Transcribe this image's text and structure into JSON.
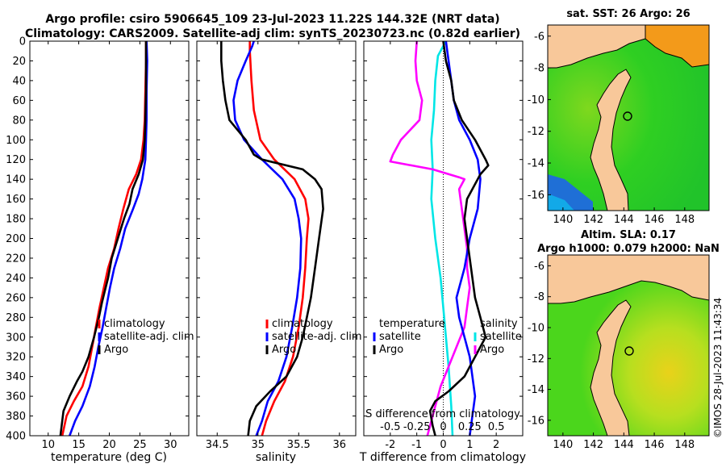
{
  "header": {
    "title_line1": "Argo profile: csiro 5906645_109 23-Jul-2023 11.22S 144.32E (NRT data)",
    "title_line2": "Climatology: CARS2009. Satellite-adj clim: synTS_20230723.nc (0.82d earlier)"
  },
  "colors": {
    "climatology": "#ff0000",
    "satellite": "#0000ff",
    "argo": "#000000",
    "salinity": "#00e6e6",
    "salinity_diff": "#ff00ff",
    "land": "#f8c89a",
    "ocean_green": "#33cc22",
    "deep_blue": "#1f6fd6",
    "warm_orange": "#f39a1a",
    "yellow_green": "#c9e21c"
  },
  "watermark": "©IMOS 28-Jul-2023 11:43:34",
  "chart_data": [
    {
      "id": "temperature",
      "type": "line",
      "xlabel": "temperature (deg C)",
      "ylabel": "",
      "xlim": [
        7,
        33
      ],
      "ylim": [
        400,
        0
      ],
      "xticks": [
        "10",
        "15",
        "20",
        "25",
        "30"
      ],
      "xtick_values": [
        10,
        15,
        20,
        25,
        30
      ],
      "yticks": [
        "0",
        "20",
        "40",
        "60",
        "80",
        "100",
        "120",
        "140",
        "160",
        "180",
        "200",
        "220",
        "240",
        "260",
        "280",
        "300",
        "320",
        "340",
        "360",
        "380",
        "400"
      ],
      "legend": [
        "climatology",
        "satellite-adj. clim",
        "Argo"
      ],
      "series": [
        {
          "name": "climatology",
          "color": "#ff0000",
          "points": [
            [
              26,
              0
            ],
            [
              26,
              20
            ],
            [
              25.9,
              50
            ],
            [
              25.8,
              80
            ],
            [
              25.6,
              100
            ],
            [
              25.2,
              120
            ],
            [
              24.4,
              135
            ],
            [
              23.2,
              150
            ],
            [
              22.3,
              170
            ],
            [
              21.5,
              190
            ],
            [
              20.8,
              210
            ],
            [
              19.8,
              230
            ],
            [
              19.1,
              250
            ],
            [
              18.4,
              270
            ],
            [
              17.8,
              290
            ],
            [
              17.2,
              310
            ],
            [
              16.6,
              330
            ],
            [
              15.6,
              350
            ],
            [
              14.2,
              365
            ],
            [
              13,
              380
            ],
            [
              12.3,
              400
            ]
          ]
        },
        {
          "name": "satellite-adj. clim",
          "color": "#0000ff",
          "points": [
            [
              26.1,
              0
            ],
            [
              26.2,
              20
            ],
            [
              26.1,
              50
            ],
            [
              26.1,
              80
            ],
            [
              26,
              100
            ],
            [
              25.9,
              120
            ],
            [
              25.4,
              140
            ],
            [
              24.8,
              155
            ],
            [
              23.9,
              170
            ],
            [
              22.6,
              190
            ],
            [
              21.8,
              210
            ],
            [
              20.8,
              230
            ],
            [
              20.1,
              250
            ],
            [
              19.5,
              270
            ],
            [
              18.9,
              290
            ],
            [
              18.2,
              310
            ],
            [
              17.6,
              330
            ],
            [
              16.8,
              350
            ],
            [
              15.6,
              370
            ],
            [
              14.4,
              385
            ],
            [
              13.5,
              400
            ]
          ]
        },
        {
          "name": "Argo",
          "color": "#000000",
          "points": [
            [
              26,
              0
            ],
            [
              26,
              20
            ],
            [
              26,
              50
            ],
            [
              25.9,
              80
            ],
            [
              25.8,
              100
            ],
            [
              25.5,
              120
            ],
            [
              24.8,
              135
            ],
            [
              23.8,
              150
            ],
            [
              23.3,
              165
            ],
            [
              22.4,
              180
            ],
            [
              21.4,
              200
            ],
            [
              20.4,
              220
            ],
            [
              19.8,
              240
            ],
            [
              19.2,
              255
            ],
            [
              18.8,
              265
            ],
            [
              18.3,
              280
            ],
            [
              17.5,
              300
            ],
            [
              16.6,
              320
            ],
            [
              15.6,
              335
            ],
            [
              14.7,
              345
            ],
            [
              13.5,
              360
            ],
            [
              12.5,
              375
            ],
            [
              12.2,
              390
            ],
            [
              12,
              400
            ]
          ]
        }
      ]
    },
    {
      "id": "salinity",
      "type": "line",
      "xlabel": "salinity",
      "ylabel": "",
      "xlim": [
        34.25,
        36.2
      ],
      "ylim": [
        400,
        0
      ],
      "xticks": [
        "34.5",
        "35",
        "35.5",
        "36"
      ],
      "xtick_values": [
        34.5,
        35,
        35.5,
        36
      ],
      "legend": [
        "climatology",
        "satellite-adj. clim",
        "Argo"
      ],
      "series": [
        {
          "name": "climatology",
          "color": "#ff0000",
          "points": [
            [
              34.9,
              0
            ],
            [
              34.9,
              10
            ],
            [
              34.92,
              40
            ],
            [
              34.95,
              70
            ],
            [
              35.03,
              100
            ],
            [
              35.2,
              120
            ],
            [
              35.45,
              140
            ],
            [
              35.58,
              160
            ],
            [
              35.62,
              180
            ],
            [
              35.6,
              200
            ],
            [
              35.58,
              230
            ],
            [
              35.55,
              260
            ],
            [
              35.5,
              290
            ],
            [
              35.43,
              320
            ],
            [
              35.33,
              345
            ],
            [
              35.2,
              365
            ],
            [
              35.1,
              385
            ],
            [
              35.05,
              400
            ]
          ]
        },
        {
          "name": "satellite-adj. clim",
          "color": "#0000ff",
          "points": [
            [
              34.95,
              0
            ],
            [
              34.93,
              5
            ],
            [
              34.85,
              20
            ],
            [
              34.75,
              40
            ],
            [
              34.7,
              60
            ],
            [
              34.72,
              80
            ],
            [
              34.83,
              100
            ],
            [
              35.05,
              120
            ],
            [
              35.3,
              140
            ],
            [
              35.45,
              160
            ],
            [
              35.5,
              180
            ],
            [
              35.53,
              200
            ],
            [
              35.52,
              230
            ],
            [
              35.48,
              260
            ],
            [
              35.42,
              290
            ],
            [
              35.35,
              320
            ],
            [
              35.25,
              345
            ],
            [
              35.12,
              365
            ],
            [
              35.05,
              385
            ],
            [
              34.98,
              400
            ]
          ]
        },
        {
          "name": "Argo",
          "color": "#000000",
          "points": [
            [
              34.55,
              0
            ],
            [
              34.55,
              20
            ],
            [
              34.57,
              40
            ],
            [
              34.6,
              60
            ],
            [
              34.65,
              80
            ],
            [
              34.85,
              100
            ],
            [
              34.95,
              115
            ],
            [
              35.05,
              120
            ],
            [
              35.55,
              130
            ],
            [
              35.7,
              140
            ],
            [
              35.78,
              150
            ],
            [
              35.8,
              170
            ],
            [
              35.75,
              200
            ],
            [
              35.7,
              230
            ],
            [
              35.65,
              260
            ],
            [
              35.6,
              280
            ],
            [
              35.55,
              300
            ],
            [
              35.48,
              320
            ],
            [
              35.35,
              340
            ],
            [
              35.15,
              355
            ],
            [
              34.98,
              370
            ],
            [
              34.9,
              385
            ],
            [
              34.88,
              400
            ]
          ]
        }
      ]
    },
    {
      "id": "difference",
      "type": "line",
      "xlabel": "T difference from climatology",
      "top_xlabel": "S difference from climatology",
      "xlim": [
        -3,
        3
      ],
      "ylim": [
        400,
        0
      ],
      "xticks": [
        "-2",
        "-1",
        "0",
        "1",
        "2"
      ],
      "xtick_values": [
        -2,
        -1,
        0,
        1,
        2
      ],
      "top_xticks": [
        "-0.5",
        "-0.25",
        "0",
        "0.25",
        "0.5"
      ],
      "top_xtick_values": [
        -2,
        -1,
        0,
        1,
        2
      ],
      "legend_left_title": "temperature",
      "legend_right_title": "salinity",
      "legend_left": [
        "satellite",
        "Argo"
      ],
      "legend_right": [
        "satellite",
        "Argo"
      ],
      "series": [
        {
          "name": "salinity satellite",
          "color": "#00e6e6",
          "points": [
            [
              0.1,
              0
            ],
            [
              -0.2,
              15
            ],
            [
              -0.3,
              40
            ],
            [
              -0.35,
              70
            ],
            [
              -0.45,
              100
            ],
            [
              -0.4,
              130
            ],
            [
              -0.45,
              160
            ],
            [
              -0.3,
              200
            ],
            [
              -0.1,
              240
            ],
            [
              0,
              270
            ],
            [
              0.1,
              300
            ],
            [
              0.2,
              330
            ],
            [
              0.3,
              370
            ],
            [
              0.35,
              400
            ]
          ]
        },
        {
          "name": "salinity Argo",
          "color": "#ff00ff",
          "points": [
            [
              -1,
              0
            ],
            [
              -1.05,
              20
            ],
            [
              -1,
              40
            ],
            [
              -0.8,
              60
            ],
            [
              -0.9,
              80
            ],
            [
              -1.6,
              100
            ],
            [
              -1.9,
              115
            ],
            [
              -2,
              122
            ],
            [
              -0.4,
              130
            ],
            [
              0.6,
              138
            ],
            [
              0.8,
              140
            ],
            [
              0.6,
              150
            ],
            [
              0.7,
              170
            ],
            [
              0.8,
              190
            ],
            [
              0.9,
              210
            ],
            [
              0.9,
              230
            ],
            [
              1,
              250
            ],
            [
              0.9,
              270
            ],
            [
              0.8,
              290
            ],
            [
              0.5,
              310
            ],
            [
              0.2,
              330
            ],
            [
              -0.1,
              350
            ],
            [
              -0.3,
              370
            ],
            [
              -0.5,
              390
            ],
            [
              -0.6,
              400
            ]
          ]
        },
        {
          "name": "temperature satellite",
          "color": "#0000ff",
          "points": [
            [
              0.1,
              0
            ],
            [
              0.2,
              20
            ],
            [
              0.3,
              40
            ],
            [
              0.4,
              60
            ],
            [
              0.6,
              80
            ],
            [
              1,
              100
            ],
            [
              1.3,
              120
            ],
            [
              1.4,
              140
            ],
            [
              1.3,
              170
            ],
            [
              1,
              200
            ],
            [
              0.8,
              230
            ],
            [
              0.5,
              260
            ],
            [
              0.6,
              280
            ],
            [
              0.8,
              300
            ],
            [
              1,
              320
            ],
            [
              1.1,
              340
            ],
            [
              1.2,
              360
            ],
            [
              1.1,
              380
            ],
            [
              1,
              400
            ]
          ]
        },
        {
          "name": "temperature Argo",
          "color": "#000000",
          "points": [
            [
              0,
              0
            ],
            [
              0.1,
              20
            ],
            [
              0.3,
              40
            ],
            [
              0.4,
              60
            ],
            [
              0.7,
              80
            ],
            [
              1.2,
              100
            ],
            [
              1.6,
              120
            ],
            [
              1.7,
              126
            ],
            [
              1.4,
              135
            ],
            [
              1.2,
              145
            ],
            [
              0.9,
              160
            ],
            [
              0.8,
              180
            ],
            [
              0.9,
              200
            ],
            [
              1,
              220
            ],
            [
              1.1,
              240
            ],
            [
              1.2,
              260
            ],
            [
              1.4,
              280
            ],
            [
              1.6,
              300
            ],
            [
              1.2,
              320
            ],
            [
              0.8,
              340
            ],
            [
              0.2,
              355
            ],
            [
              -0.3,
              365
            ],
            [
              -0.5,
              375
            ],
            [
              -0.4,
              390
            ],
            [
              -0.3,
              400
            ]
          ]
        }
      ]
    }
  ],
  "maps": [
    {
      "id": "sst-map",
      "title": "sat. SST: 26 Argo: 26",
      "subtitle": "",
      "xticks": [
        "140",
        "142",
        "144",
        "146",
        "148"
      ],
      "yticks": [
        "-6",
        "-8",
        "-10",
        "-12",
        "-14",
        "-16"
      ]
    },
    {
      "id": "sla-map",
      "title": "Altim. SLA: 0.17",
      "subtitle": "Argo h1000: 0.079 h2000: NaN",
      "xticks": [
        "140",
        "142",
        "144",
        "146",
        "148"
      ],
      "yticks": [
        "-6",
        "-8",
        "-10",
        "-12",
        "-14",
        "-16"
      ]
    }
  ]
}
